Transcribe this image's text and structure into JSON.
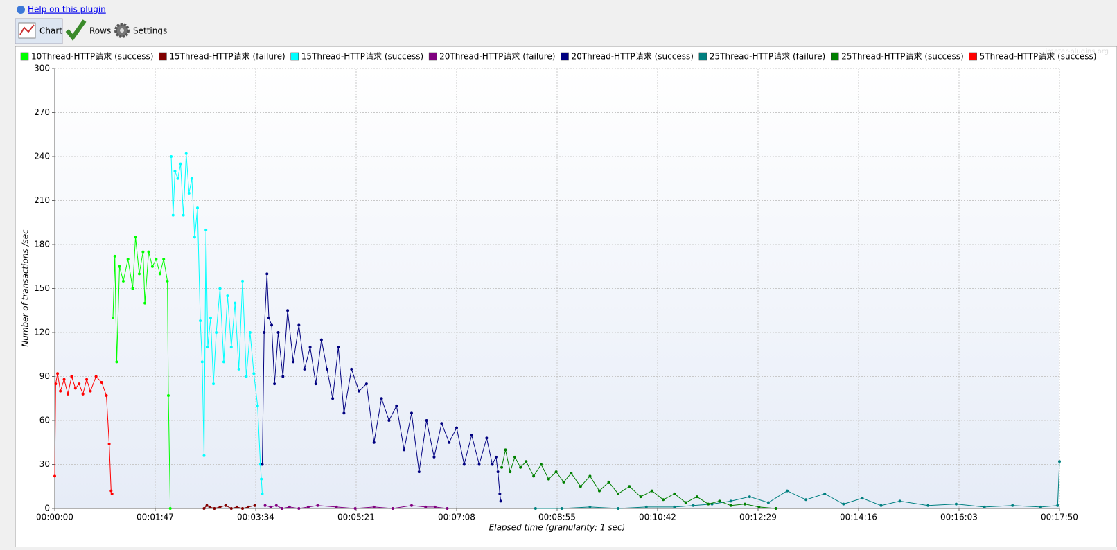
{
  "ui": {
    "help_link": "Help on this plugin",
    "tabs": [
      "Chart",
      "Rows",
      "Settings"
    ]
  },
  "chart_data": {
    "type": "line",
    "watermark": "jmeter-plugins.org",
    "x_label": "Elapsed time (granularity: 1 sec)",
    "y_label": "Number of transactions /sec",
    "grid": true,
    "legend": "top",
    "xlim": [
      0,
      1070
    ],
    "ylim": [
      0,
      300
    ],
    "xticks": [
      {
        "value": 0,
        "label": "00:00:00"
      },
      {
        "value": 107,
        "label": "00:01:47"
      },
      {
        "value": 214,
        "label": "00:03:34"
      },
      {
        "value": 321,
        "label": "00:05:21"
      },
      {
        "value": 428,
        "label": "00:07:08"
      },
      {
        "value": 535,
        "label": "00:08:55"
      },
      {
        "value": 642,
        "label": "00:10:42"
      },
      {
        "value": 749,
        "label": "00:12:29"
      },
      {
        "value": 856,
        "label": "00:14:16"
      },
      {
        "value": 963,
        "label": "00:16:03"
      },
      {
        "value": 1070,
        "label": "00:17:50"
      }
    ],
    "yticks": [
      0,
      30,
      60,
      90,
      120,
      150,
      180,
      210,
      240,
      270,
      300
    ],
    "series": [
      {
        "name": "10Thread-HTTP请求 (success)",
        "color": "#00ff00",
        "x": [
          62,
          64,
          66,
          69,
          73,
          78,
          83,
          86,
          90,
          94,
          96,
          100,
          104,
          108,
          112,
          116,
          120,
          121,
          123
        ],
        "values": [
          130,
          172,
          100,
          165,
          155,
          170,
          150,
          185,
          160,
          175,
          140,
          175,
          165,
          170,
          160,
          170,
          155,
          77,
          0
        ]
      },
      {
        "name": "15Thread-HTTP请求 (failure)",
        "color": "#800000",
        "x": [
          159,
          162,
          165,
          170,
          176,
          182,
          188,
          194,
          200,
          206,
          213
        ],
        "values": [
          0,
          2,
          1,
          0,
          1,
          2,
          0,
          1,
          0,
          1,
          2
        ]
      },
      {
        "name": "15Thread-HTTP请求 (success)",
        "color": "#00ffff",
        "x": [
          124,
          126,
          128,
          131,
          134,
          137,
          140,
          143,
          146,
          149,
          152,
          155,
          157,
          159,
          161,
          163,
          166,
          169,
          172,
          176,
          180,
          184,
          188,
          192,
          196,
          200,
          204,
          208,
          212,
          216,
          219,
          220,
          221
        ],
        "values": [
          240,
          200,
          230,
          225,
          235,
          200,
          242,
          215,
          225,
          185,
          205,
          128,
          100,
          36,
          190,
          110,
          130,
          85,
          120,
          150,
          100,
          145,
          110,
          140,
          95,
          155,
          90,
          120,
          92,
          70,
          30,
          20,
          10
        ]
      },
      {
        "name": "20Thread-HTTP请求 (failure)",
        "color": "#800080",
        "x": [
          224,
          230,
          236,
          242,
          250,
          260,
          270,
          280,
          300,
          320,
          340,
          360,
          380,
          395,
          405,
          418
        ],
        "values": [
          2,
          1,
          2,
          0,
          1,
          0,
          1,
          2,
          1,
          0,
          1,
          0,
          2,
          1,
          1,
          0
        ]
      },
      {
        "name": "20Thread-HTTP请求 (success)",
        "color": "#000080",
        "x": [
          221,
          223,
          226,
          228,
          231,
          234,
          238,
          243,
          248,
          254,
          260,
          266,
          272,
          278,
          284,
          290,
          296,
          302,
          308,
          316,
          324,
          332,
          340,
          348,
          356,
          364,
          372,
          380,
          388,
          396,
          404,
          412,
          420,
          428,
          436,
          444,
          452,
          460,
          466,
          470,
          472,
          474,
          475
        ],
        "values": [
          30,
          120,
          160,
          130,
          125,
          85,
          120,
          90,
          135,
          100,
          125,
          95,
          110,
          85,
          115,
          95,
          75,
          110,
          65,
          95,
          80,
          85,
          45,
          75,
          60,
          70,
          40,
          65,
          25,
          60,
          35,
          58,
          45,
          55,
          30,
          50,
          30,
          48,
          30,
          35,
          25,
          10,
          5
        ]
      },
      {
        "name": "25Thread-HTTP请求 (failure)",
        "color": "#008080",
        "x": [
          512,
          540,
          570,
          600,
          630,
          660,
          680,
          700,
          720,
          740,
          760,
          780,
          800,
          820,
          840,
          860,
          880,
          900,
          930,
          960,
          990,
          1020,
          1050,
          1068,
          1070
        ],
        "values": [
          0,
          0,
          1,
          0,
          1,
          1,
          2,
          3,
          5,
          8,
          4,
          12,
          6,
          10,
          3,
          7,
          2,
          5,
          2,
          3,
          1,
          2,
          1,
          2,
          32
        ]
      },
      {
        "name": "25Thread-HTTP请求 (success)",
        "color": "#008000",
        "x": [
          476,
          480,
          485,
          490,
          496,
          502,
          510,
          518,
          526,
          534,
          542,
          550,
          560,
          570,
          580,
          590,
          600,
          612,
          624,
          636,
          648,
          660,
          672,
          684,
          696,
          708,
          720,
          735,
          750,
          768
        ],
        "values": [
          28,
          40,
          25,
          35,
          28,
          32,
          22,
          30,
          20,
          25,
          18,
          24,
          15,
          22,
          12,
          18,
          10,
          15,
          8,
          12,
          6,
          10,
          4,
          8,
          3,
          5,
          2,
          3,
          1,
          0
        ]
      },
      {
        "name": "5Thread-HTTP请求 (success)",
        "color": "#ff0000",
        "x": [
          0,
          1,
          3,
          6,
          10,
          14,
          18,
          22,
          26,
          30,
          34,
          38,
          44,
          50,
          55,
          58,
          60,
          61
        ],
        "values": [
          22,
          85,
          92,
          80,
          88,
          78,
          90,
          82,
          85,
          78,
          88,
          80,
          90,
          86,
          77,
          44,
          12,
          10
        ]
      }
    ]
  }
}
